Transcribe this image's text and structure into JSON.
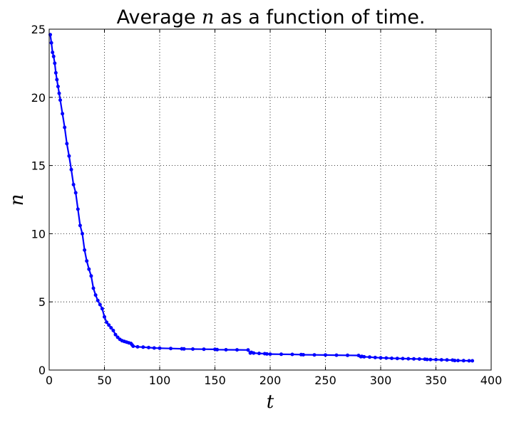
{
  "chart_data": {
    "type": "line",
    "title_prefix": "Average ",
    "title_math": "n",
    "title_suffix": " as a function of time.",
    "xlabel": "t",
    "ylabel": "n",
    "xlim": [
      0,
      400
    ],
    "ylim": [
      0,
      25
    ],
    "xticks": [
      "0",
      "50",
      "100",
      "150",
      "200",
      "250",
      "300",
      "350",
      "400"
    ],
    "yticks": [
      "0",
      "5",
      "10",
      "15",
      "20",
      "25"
    ],
    "grid": true,
    "series": [
      {
        "color": "#0000ff",
        "marker": "dot",
        "x": [
          1,
          2,
          3,
          4,
          5,
          6,
          7,
          8,
          9,
          10,
          12,
          14,
          16,
          18,
          20,
          22,
          24,
          26,
          28,
          30,
          32,
          34,
          36,
          38,
          40,
          42,
          44,
          46,
          48,
          50,
          52,
          54,
          56,
          58,
          60,
          62,
          64,
          66,
          68,
          70,
          72,
          74,
          75,
          76,
          80,
          85,
          90,
          95,
          100,
          110,
          120,
          122,
          130,
          140,
          150,
          152,
          160,
          170,
          180,
          182,
          183,
          185,
          190,
          195,
          197,
          200,
          210,
          220,
          228,
          230,
          240,
          250,
          260,
          270,
          280,
          282,
          283,
          285,
          290,
          295,
          300,
          305,
          310,
          315,
          320,
          325,
          330,
          335,
          340,
          342,
          345,
          350,
          355,
          360,
          365,
          367,
          370,
          375,
          380,
          383
        ],
        "y": [
          24.6,
          24.0,
          23.3,
          23.0,
          22.5,
          21.8,
          21.3,
          20.8,
          20.3,
          19.8,
          18.8,
          17.8,
          16.6,
          15.7,
          14.7,
          13.6,
          13.0,
          11.8,
          10.6,
          10.0,
          8.8,
          8.0,
          7.4,
          6.9,
          6.0,
          5.5,
          5.1,
          4.8,
          4.5,
          3.9,
          3.5,
          3.3,
          3.1,
          2.9,
          2.6,
          2.4,
          2.25,
          2.15,
          2.1,
          2.05,
          2.0,
          1.95,
          1.85,
          1.75,
          1.7,
          1.68,
          1.65,
          1.62,
          1.6,
          1.58,
          1.56,
          1.55,
          1.54,
          1.53,
          1.52,
          1.5,
          1.49,
          1.48,
          1.47,
          1.25,
          1.3,
          1.25,
          1.22,
          1.2,
          1.18,
          1.17,
          1.16,
          1.15,
          1.13,
          1.12,
          1.11,
          1.1,
          1.09,
          1.08,
          1.07,
          0.98,
          1.0,
          0.97,
          0.95,
          0.92,
          0.9,
          0.88,
          0.86,
          0.85,
          0.84,
          0.83,
          0.82,
          0.81,
          0.8,
          0.78,
          0.77,
          0.76,
          0.75,
          0.74,
          0.73,
          0.7,
          0.7,
          0.69,
          0.68,
          0.68
        ]
      }
    ]
  }
}
